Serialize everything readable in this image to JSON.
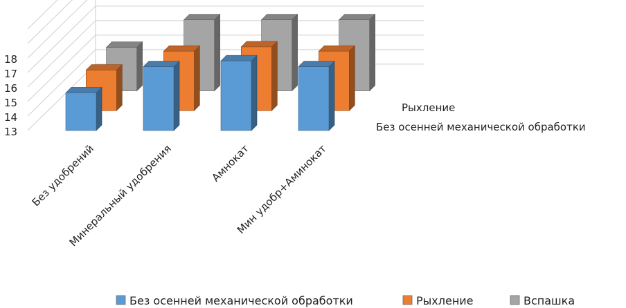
{
  "chart_data": {
    "type": "bar",
    "categories": [
      "Без удобрений",
      "Минеральный удобрения",
      "Амнокат",
      "Мин удобр+Аминокат"
    ],
    "series": [
      {
        "name": "Без осенней механической обработки",
        "color": "#5b9bd5",
        "values": [
          15.6,
          17.4,
          17.8,
          17.4
        ]
      },
      {
        "name": "Рыхление",
        "color": "#ed7d31",
        "values": [
          15.8,
          17.1,
          17.4,
          17.1
        ]
      },
      {
        "name": "Вспашка",
        "color": "#a5a5a5",
        "values": [
          16.0,
          17.9,
          17.9,
          17.9
        ]
      }
    ],
    "y_ticks": [
      "13",
      "14",
      "15",
      "16",
      "17",
      "18"
    ],
    "ylim": [
      13,
      18
    ],
    "depth_labels": [
      "Рыхление",
      "Без осенней механической обработки"
    ],
    "legend_position": "bottom",
    "grid": true,
    "perspective": "3d-clustered-column"
  }
}
